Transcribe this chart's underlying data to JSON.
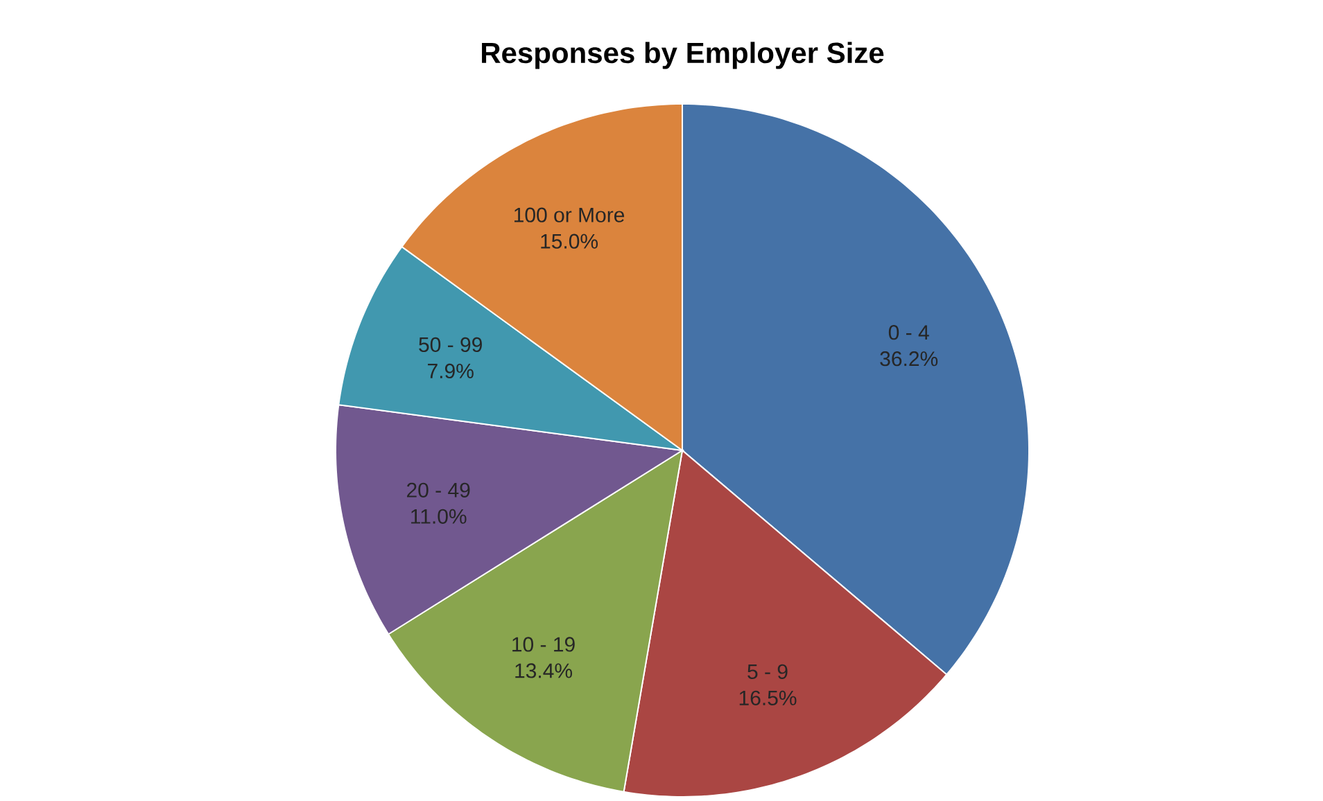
{
  "chart_data": {
    "type": "pie",
    "title": "Responses by Employer Size",
    "categories": [
      "0 - 4",
      "5 - 9",
      "10 - 19",
      "20 - 49",
      "50 - 99",
      "100 or More"
    ],
    "values": [
      36.2,
      16.5,
      13.4,
      11.0,
      7.9,
      15.0
    ],
    "value_labels": [
      "36.2%",
      "16.5%",
      "13.4%",
      "11.0%",
      "7.9%",
      "15.0%"
    ],
    "colors": [
      "#4572a7",
      "#aa4643",
      "#89a54e",
      "#71588f",
      "#4198af",
      "#db843d"
    ]
  }
}
